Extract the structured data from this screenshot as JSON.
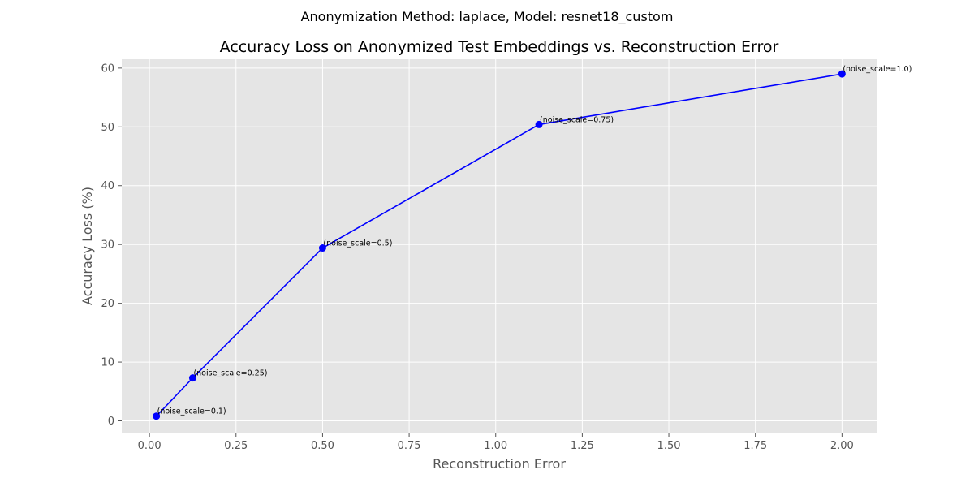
{
  "chart_data": {
    "type": "line",
    "suptitle": "Anonymization Method: laplace, Model: resnet18_custom",
    "title": "Accuracy Loss on Anonymized Test Embeddings vs. Reconstruction Error",
    "xlabel": "Reconstruction Error",
    "ylabel": "Accuracy Loss (%)",
    "xlim": [
      -0.08,
      2.1
    ],
    "ylim": [
      -2,
      61.5
    ],
    "xticks": [
      0.0,
      0.25,
      0.5,
      0.75,
      1.0,
      1.25,
      1.5,
      1.75,
      2.0
    ],
    "xtick_labels": [
      "0.00",
      "0.25",
      "0.50",
      "0.75",
      "1.00",
      "1.25",
      "1.50",
      "1.75",
      "2.00"
    ],
    "yticks": [
      0,
      10,
      20,
      30,
      40,
      50,
      60
    ],
    "ytick_labels": [
      "0",
      "10",
      "20",
      "30",
      "40",
      "50",
      "60"
    ],
    "grid": true,
    "series": [
      {
        "color": "#0000ff",
        "points": [
          {
            "x": 0.02,
            "y": 0.8,
            "label": "(noise_scale=0.1)"
          },
          {
            "x": 0.125,
            "y": 7.3,
            "label": "(noise_scale=0.25)"
          },
          {
            "x": 0.5,
            "y": 29.4,
            "label": "(noise_scale=0.5)"
          },
          {
            "x": 1.125,
            "y": 50.4,
            "label": "(noise_scale=0.75)"
          },
          {
            "x": 2.0,
            "y": 59.0,
            "label": "(noise_scale=1.0)"
          }
        ]
      }
    ]
  },
  "colors": {
    "plot_background": "#e5e5e5",
    "line": "#0000ff"
  }
}
